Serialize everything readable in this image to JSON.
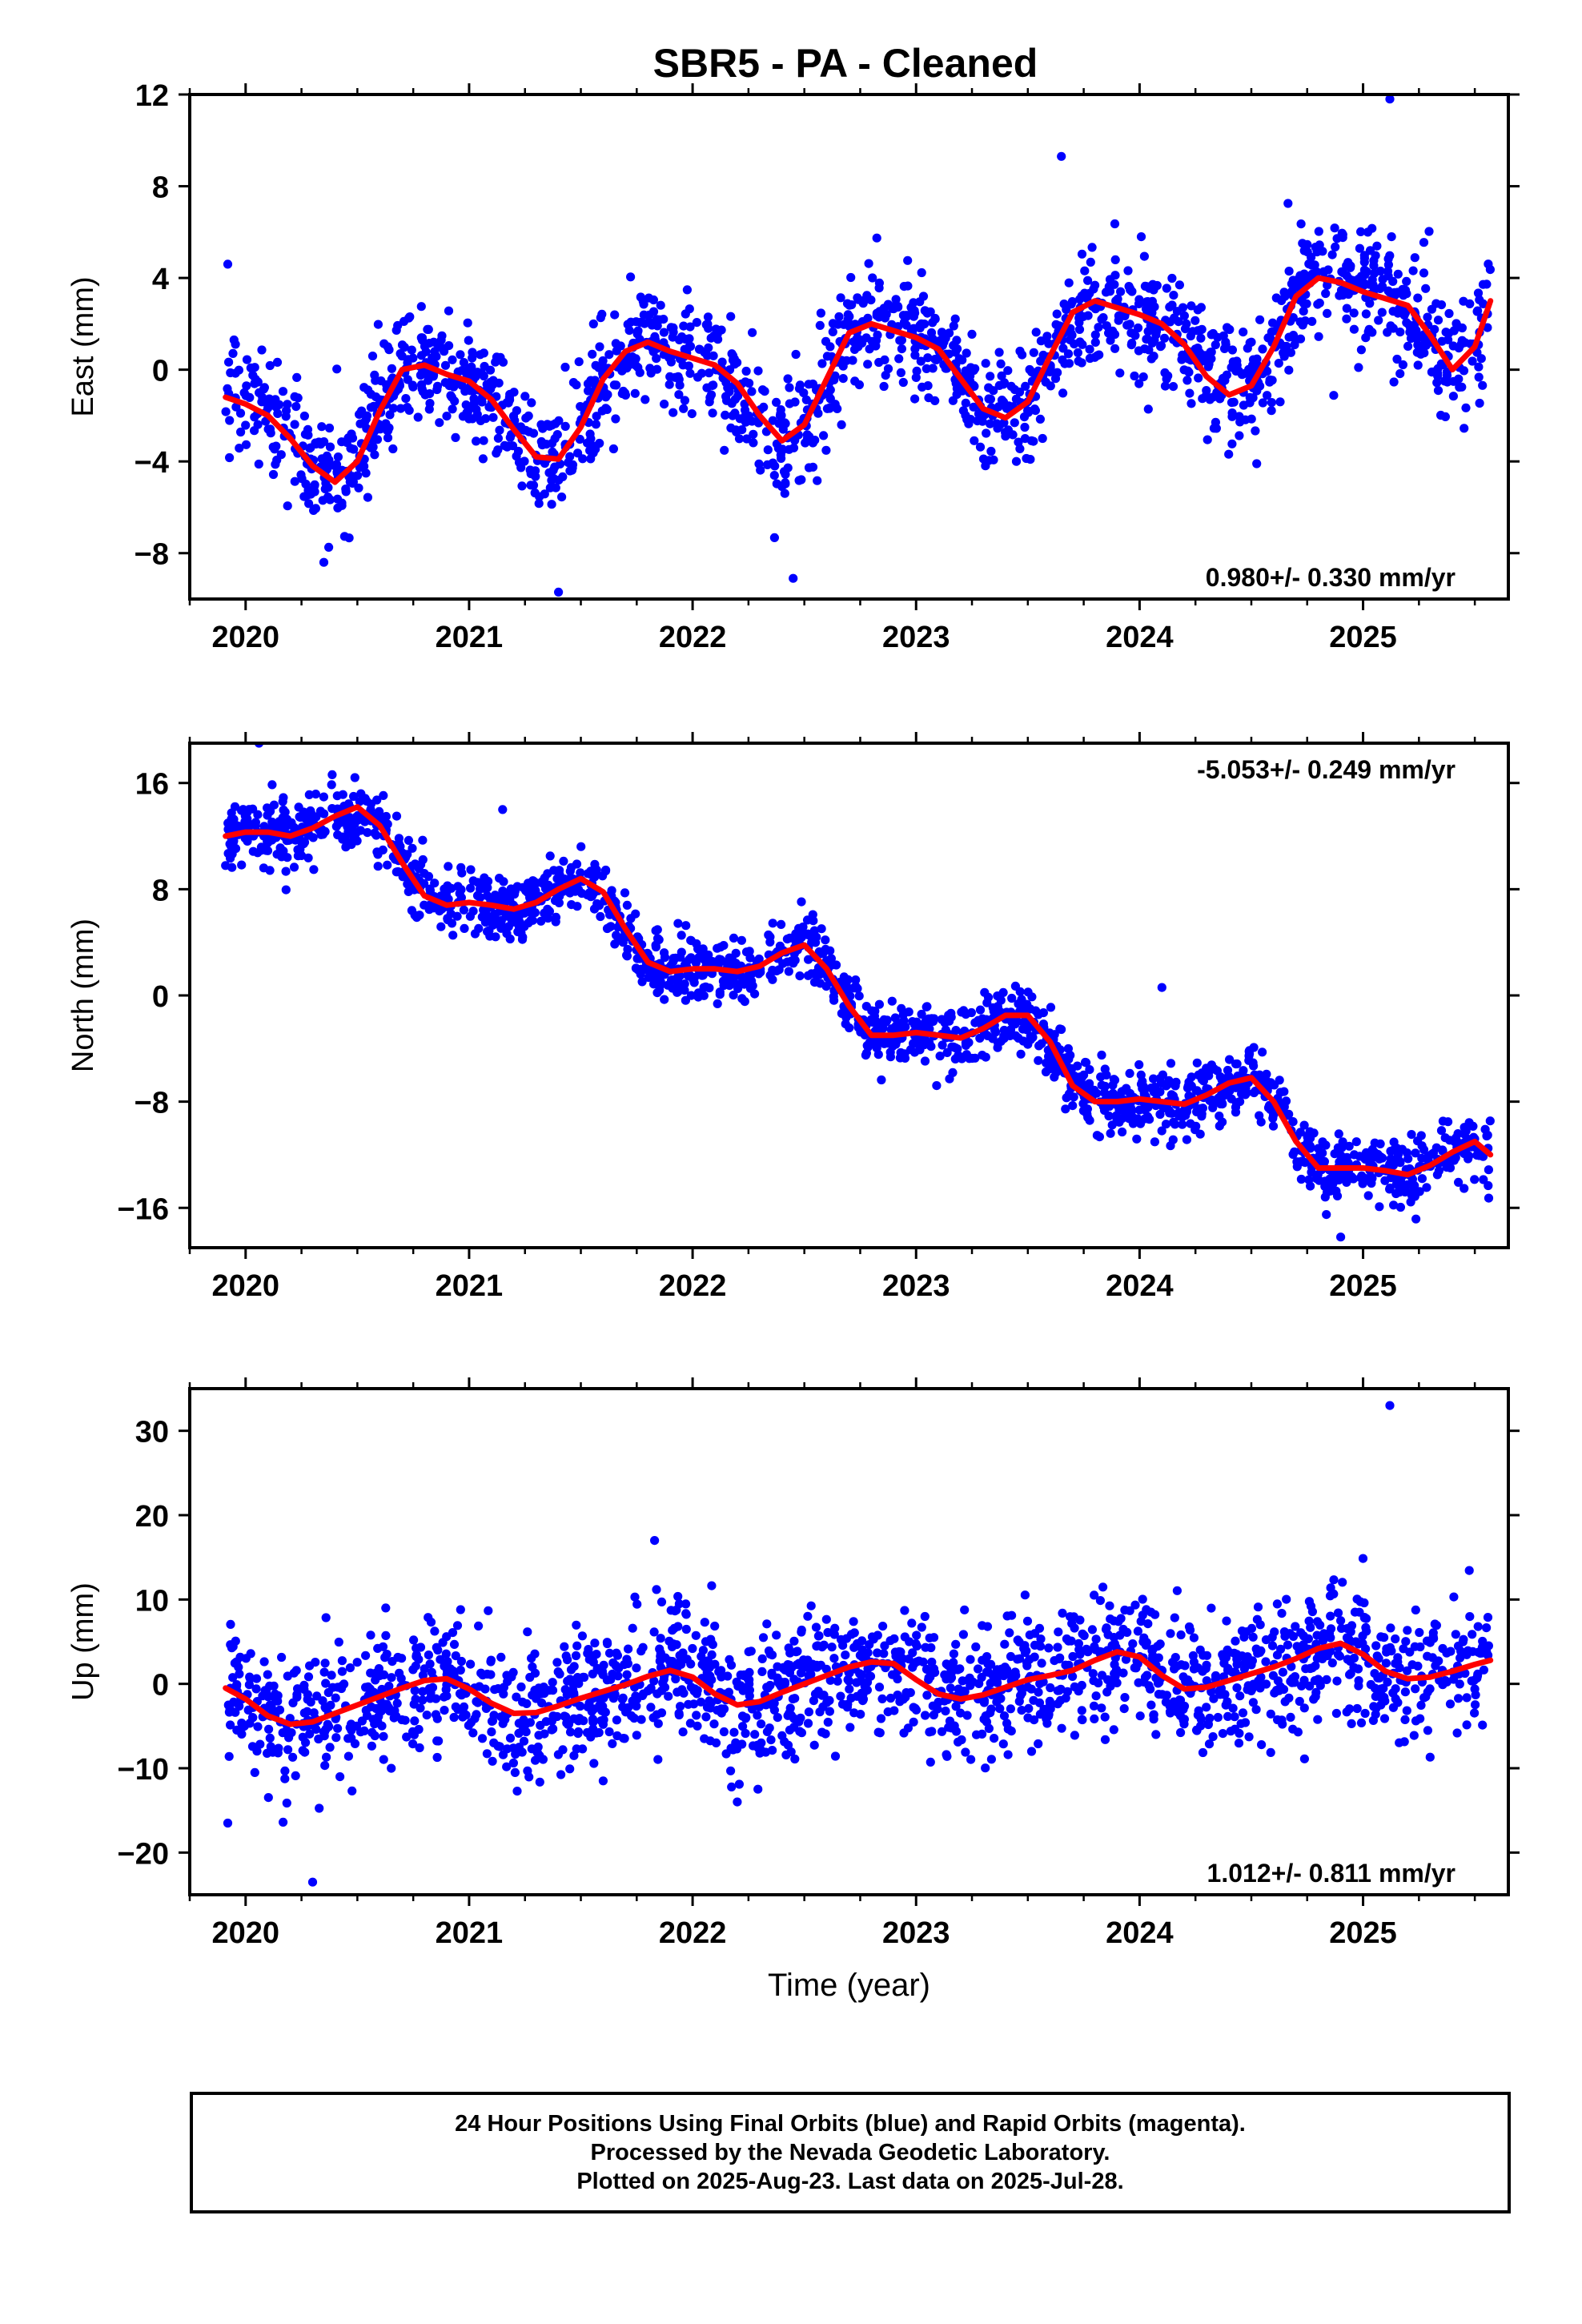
{
  "chart_data": {
    "title": "SBR5  - PA - Cleaned",
    "type": "scatter",
    "xlabel": "Time (year)",
    "xlim": [
      2019.75,
      2025.65
    ],
    "x_ticks": [
      2020,
      2021,
      2022,
      2023,
      2024,
      2025
    ],
    "x_tick_labels": [
      "2020",
      "2021",
      "2022",
      "2023",
      "2024",
      "2025"
    ],
    "x_minor_ticks": [
      2019.75,
      2020.25,
      2020.5,
      2020.75,
      2021.25,
      2021.5,
      2021.75,
      2022.25,
      2022.5,
      2022.75,
      2023.25,
      2023.5,
      2023.75,
      2024.25,
      2024.5,
      2024.75,
      2025.25,
      2025.5
    ],
    "colors": {
      "observations": "#0000ff",
      "trend": "#ff0000"
    },
    "data_start": 2019.91,
    "data_end": 2025.57,
    "panels": [
      {
        "name": "east",
        "ylabel": "East (mm)",
        "ylim": [
          -10,
          12
        ],
        "y_ticks": [
          -8,
          -4,
          0,
          4,
          8,
          12
        ],
        "y_tick_labels": [
          "−8",
          "−4",
          "0",
          "4",
          "8",
          "12"
        ],
        "rate": "0.980+/- 0.330 mm/yr",
        "rate_position": "bottom-right",
        "trend": {
          "x": [
            2019.91,
            2020.0,
            2020.1,
            2020.2,
            2020.3,
            2020.4,
            2020.5,
            2020.6,
            2020.7,
            2020.8,
            2020.9,
            2021.0,
            2021.1,
            2021.2,
            2021.3,
            2021.4,
            2021.5,
            2021.6,
            2021.7,
            2021.8,
            2021.9,
            2022.0,
            2022.1,
            2022.2,
            2022.3,
            2022.4,
            2022.5,
            2022.6,
            2022.7,
            2022.8,
            2022.9,
            2023.0,
            2023.1,
            2023.2,
            2023.3,
            2023.4,
            2023.5,
            2023.6,
            2023.7,
            2023.8,
            2023.9,
            2024.0,
            2024.1,
            2024.2,
            2024.3,
            2024.4,
            2024.5,
            2024.6,
            2024.7,
            2024.8,
            2024.9,
            2025.0,
            2025.1,
            2025.2,
            2025.3,
            2025.4,
            2025.5,
            2025.57
          ],
          "y": [
            -1.2,
            -1.5,
            -2.0,
            -3.0,
            -4.2,
            -4.9,
            -4.0,
            -1.8,
            0.0,
            0.2,
            -0.2,
            -0.5,
            -1.3,
            -2.6,
            -3.8,
            -3.9,
            -2.5,
            -0.4,
            0.8,
            1.2,
            0.8,
            0.5,
            0.2,
            -0.6,
            -2.0,
            -3.1,
            -2.4,
            -0.4,
            1.6,
            2.0,
            1.7,
            1.4,
            0.9,
            -0.4,
            -1.7,
            -2.1,
            -1.4,
            0.6,
            2.5,
            3.0,
            2.7,
            2.4,
            2.0,
            1.1,
            -0.3,
            -1.1,
            -0.7,
            1.0,
            3.2,
            4.0,
            3.8,
            3.4,
            3.1,
            2.8,
            1.5,
            0.0,
            1.0,
            3.0
          ]
        },
        "scatter": {
          "n": 1800,
          "noise": 1.3,
          "outliers": [
            [
              2019.92,
              4.6
            ],
            [
              2021.4,
              -9.7
            ],
            [
              2022.45,
              -9.1
            ],
            [
              2023.65,
              9.3
            ],
            [
              2025.12,
              11.8
            ],
            [
              2020.35,
              -8.4
            ]
          ]
        }
      },
      {
        "name": "north",
        "ylabel": "North (mm)",
        "ylim": [
          -19,
          19
        ],
        "y_ticks": [
          -16,
          -8,
          0,
          8,
          16
        ],
        "y_tick_labels": [
          "−16",
          "−8",
          "0",
          "8",
          "16"
        ],
        "rate": "-5.053+/- 0.249 mm/yr",
        "rate_position": "top-right",
        "trend": {
          "x": [
            2019.91,
            2020.0,
            2020.1,
            2020.2,
            2020.3,
            2020.4,
            2020.5,
            2020.6,
            2020.7,
            2020.8,
            2020.9,
            2021.0,
            2021.1,
            2021.2,
            2021.3,
            2021.4,
            2021.5,
            2021.6,
            2021.7,
            2021.8,
            2021.9,
            2022.0,
            2022.1,
            2022.2,
            2022.3,
            2022.4,
            2022.5,
            2022.6,
            2022.7,
            2022.8,
            2022.9,
            2023.0,
            2023.1,
            2023.2,
            2023.3,
            2023.4,
            2023.5,
            2023.6,
            2023.7,
            2023.8,
            2023.9,
            2024.0,
            2024.1,
            2024.2,
            2024.3,
            2024.4,
            2024.5,
            2024.6,
            2024.7,
            2024.8,
            2024.9,
            2025.0,
            2025.1,
            2025.2,
            2025.3,
            2025.4,
            2025.5,
            2025.57
          ],
          "y": [
            12.0,
            12.3,
            12.3,
            12.0,
            12.6,
            13.5,
            14.2,
            12.8,
            10.0,
            7.5,
            6.8,
            7.0,
            6.8,
            6.5,
            7.0,
            8.0,
            8.8,
            7.8,
            5.0,
            2.5,
            1.8,
            2.0,
            2.0,
            1.8,
            2.2,
            3.2,
            3.8,
            2.0,
            -0.8,
            -3.0,
            -3.0,
            -2.8,
            -3.0,
            -3.2,
            -2.5,
            -1.5,
            -1.5,
            -3.5,
            -6.8,
            -8.0,
            -8.0,
            -7.8,
            -8.0,
            -8.2,
            -7.5,
            -6.6,
            -6.2,
            -8.0,
            -11.0,
            -13.0,
            -13.0,
            -13.0,
            -13.2,
            -13.5,
            -12.8,
            -11.8,
            -11.0,
            -12.0
          ]
        },
        "scatter": {
          "n": 1800,
          "noise": 1.2,
          "outliers": [
            [
              2020.06,
              19.0
            ],
            [
              2021.15,
              14.0
            ],
            [
              2024.9,
              -18.2
            ],
            [
              2024.1,
              0.6
            ],
            [
              2021.85,
              4.2
            ]
          ]
        }
      },
      {
        "name": "up",
        "ylabel": "Up (mm)",
        "ylim": [
          -25,
          35
        ],
        "y_ticks": [
          -20,
          -10,
          0,
          10,
          20,
          30
        ],
        "y_tick_labels": [
          "−20",
          "−10",
          "0",
          "10",
          "20",
          "30"
        ],
        "rate": "1.012+/- 0.811 mm/yr",
        "rate_position": "bottom-right",
        "trend": {
          "x": [
            2019.91,
            2020.0,
            2020.1,
            2020.2,
            2020.3,
            2020.4,
            2020.5,
            2020.6,
            2020.7,
            2020.8,
            2020.9,
            2021.0,
            2021.1,
            2021.2,
            2021.3,
            2021.4,
            2021.5,
            2021.6,
            2021.7,
            2021.8,
            2021.9,
            2022.0,
            2022.1,
            2022.2,
            2022.3,
            2022.4,
            2022.5,
            2022.6,
            2022.7,
            2022.8,
            2022.9,
            2023.0,
            2023.1,
            2023.2,
            2023.3,
            2023.4,
            2023.5,
            2023.6,
            2023.7,
            2023.8,
            2023.9,
            2024.0,
            2024.1,
            2024.2,
            2024.3,
            2024.4,
            2024.5,
            2024.6,
            2024.7,
            2024.8,
            2024.9,
            2025.0,
            2025.1,
            2025.2,
            2025.3,
            2025.4,
            2025.5,
            2025.57
          ],
          "y": [
            -0.5,
            -1.8,
            -3.8,
            -4.8,
            -4.5,
            -3.5,
            -2.5,
            -1.5,
            -0.5,
            0.4,
            0.6,
            -0.6,
            -2.3,
            -3.5,
            -3.4,
            -2.6,
            -1.7,
            -0.9,
            -0.1,
            0.9,
            1.6,
            0.8,
            -1.2,
            -2.5,
            -2.1,
            -1.0,
            0.0,
            1.0,
            2.0,
            2.6,
            2.4,
            0.5,
            -1.2,
            -1.8,
            -1.3,
            -0.4,
            0.5,
            1.0,
            1.6,
            2.8,
            3.8,
            3.2,
            1.0,
            -0.6,
            -0.4,
            0.4,
            1.2,
            2.0,
            3.0,
            4.2,
            4.8,
            3.5,
            1.5,
            0.6,
            0.8,
            1.5,
            2.3,
            2.8
          ]
        },
        "scatter": {
          "n": 1800,
          "noise": 4.0,
          "outliers": [
            [
              2025.12,
              33.0
            ],
            [
              2021.83,
              17.0
            ],
            [
              2020.3,
              -23.5
            ],
            [
              2019.92,
              -16.5
            ],
            [
              2022.2,
              -14.0
            ],
            [
              2021.6,
              -11.5
            ]
          ]
        }
      }
    ]
  },
  "footer": {
    "line1": "24 Hour Positions Using Final Orbits (blue) and Rapid Orbits (magenta).",
    "line2": "Processed by the Nevada Geodetic Laboratory.",
    "line3": "Plotted on 2025-Aug-23. Last data on 2025-Jul-28."
  }
}
